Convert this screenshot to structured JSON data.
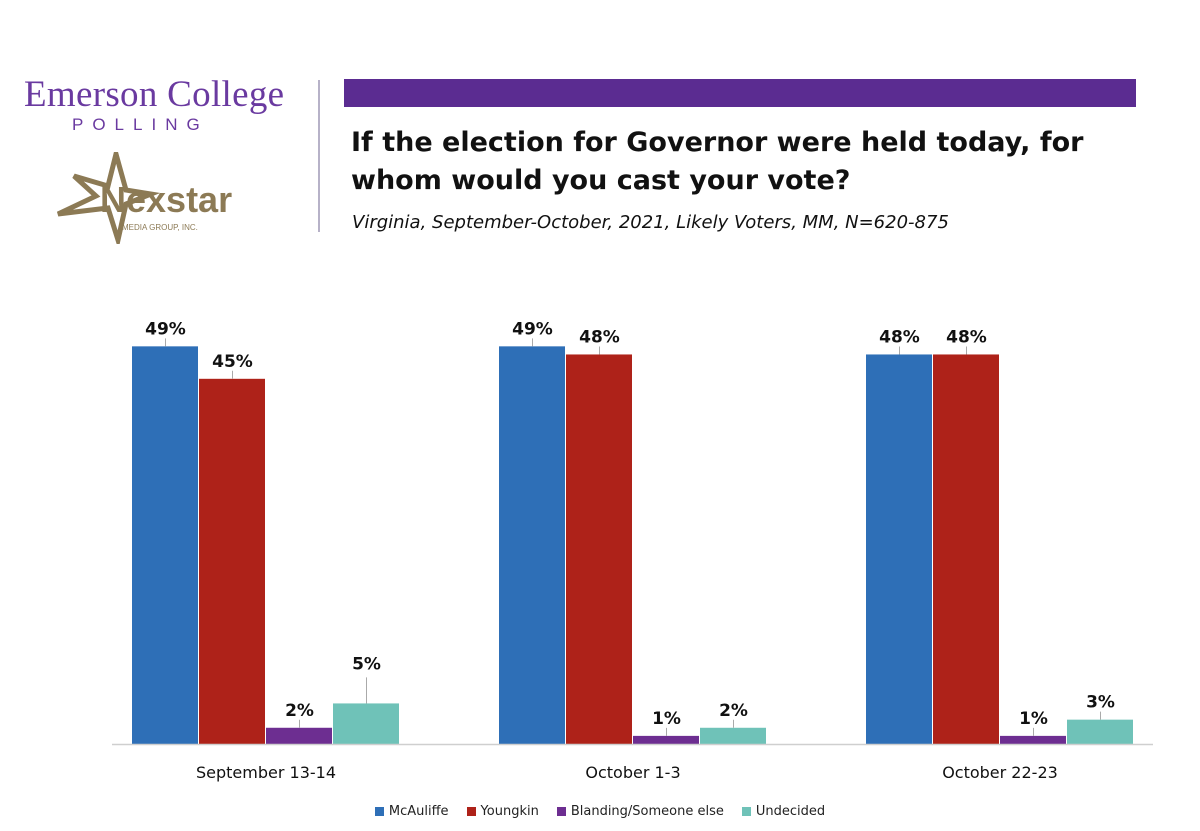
{
  "header": {
    "brand_name": "Emerson College",
    "brand_sub": "POLLING",
    "partner_logo_text": "Nexstar",
    "partner_logo_sub": "MEDIA GROUP, INC.",
    "accent_color": "#5b2c91"
  },
  "chart_data": {
    "type": "bar",
    "title": "If the election for Governor were held today, for whom would you cast your vote?",
    "subtitle": "Virginia, September-October, 2021, Likely Voters, MM, N=620-875",
    "categories": [
      "September 13-14",
      "October 1-3",
      "October 22-23"
    ],
    "series": [
      {
        "name": "McAuliffe",
        "color": "#2e6fb7",
        "values": [
          49,
          49,
          48
        ]
      },
      {
        "name": "Youngkin",
        "color": "#ae2219",
        "values": [
          45,
          48,
          48
        ]
      },
      {
        "name": "Blanding/Someone else",
        "color": "#6d2e91",
        "values": [
          2,
          1,
          1
        ]
      },
      {
        "name": "Undecided",
        "color": "#6fc2b8",
        "values": [
          5,
          2,
          3
        ]
      }
    ],
    "value_suffix": "%",
    "ylim": [
      0,
      52
    ],
    "legend_position": "bottom",
    "grid": false
  }
}
